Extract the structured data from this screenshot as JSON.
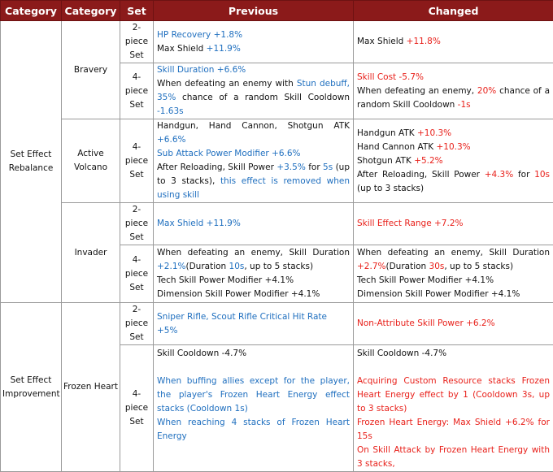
{
  "headers": [
    "Category",
    "Category",
    "Set",
    "Previous",
    "Changed"
  ],
  "groups": {
    "rebalance": "Set Effect Rebalance",
    "improvement": "Set Effect Improvement"
  },
  "sets": {
    "bravery": "Bravery",
    "active_volcano": "Active Volcano",
    "invader": "Invader",
    "frozen_heart": "Frozen Heart"
  },
  "pieces": {
    "two": "2-piece Set",
    "four": "4-piece Set"
  },
  "bravery": {
    "two_prev_1a": "HP Recovery ",
    "two_prev_1b": "+1.8%",
    "two_prev_2a": "Max Shield ",
    "two_prev_2b": "+11.9%",
    "two_new_a": "Max Shield ",
    "two_new_b": "+11.8%",
    "four_prev_1": "Skill Duration +6.6%",
    "four_prev_2a": "When defeating an enemy with ",
    "four_prev_2b": "Stun debuff, 35%",
    "four_prev_2c": " chance of a random Skill Cooldown ",
    "four_prev_2d": "-1.63s",
    "four_new_1": "Skill Cost -5.7%",
    "four_new_2a": "When defeating an enemy, ",
    "four_new_2b": "20%",
    "four_new_2c": " chance of a random Skill Cooldown ",
    "four_new_2d": "-1s"
  },
  "volcano": {
    "prev_1a": "Handgun, Hand Cannon, Shotgun ATK ",
    "prev_1b": "+6.6%",
    "prev_2": "Sub Attack Power Modifier +6.6%",
    "prev_3a": "After Reloading, Skill Power ",
    "prev_3b": "+3.5%",
    "prev_3c": " for ",
    "prev_3d": "5s",
    "prev_3e": " (up to 3 stacks), ",
    "prev_3f": "this effect is removed when using skill",
    "new_1a": "Handgun ATK ",
    "new_1b": "+10.3%",
    "new_2a": "Hand Cannon ATK ",
    "new_2b": "+10.3%",
    "new_3a": "Shotgun ATK ",
    "new_3b": "+5.2%",
    "new_4a": "After Reloading, Skill Power ",
    "new_4b": "+4.3%",
    "new_4c": "  for ",
    "new_4d": "10s",
    "new_4e": " (up to 3 stacks)"
  },
  "invader": {
    "two_prev": "Max Shield +11.9%",
    "two_new": "Skill Effect Range +7.2%",
    "four_prev_1a": "When defeating an enemy, Skill Duration ",
    "four_prev_1b": "+2.1%",
    "four_prev_1c": "(Duration ",
    "four_prev_1d": "10s",
    "four_prev_1e": ", up to 5 stacks)",
    "four_prev_2": "Tech Skill Power Modifier +4.1%",
    "four_prev_3": "Dimension Skill Power Modifier +4.1%",
    "four_new_1a": "When defeating an enemy, Skill Duration ",
    "four_new_1b": "+2.7%",
    "four_new_1c": "(Duration ",
    "four_new_1d": "30s",
    "four_new_1e": ", up to 5 stacks)",
    "four_new_2": "Tech Skill Power Modifier +4.1%",
    "four_new_3": "Dimension Skill Power Modifier +4.1%"
  },
  "frozen": {
    "two_prev": "Sniper Rifle, Scout Rifle Critical Hit Rate +5%",
    "two_new": "Non-Attribute Skill Power +6.2%",
    "four_prev_1": "Skill Cooldown -4.7%",
    "four_prev_2": "When buffing allies except for the player, the player's Frozen Heart Energy effect stacks (Cooldown 1s)",
    "four_prev_3": "When reaching 4 stacks of Frozen Heart Energy",
    "four_new_1": "Skill Cooldown -4.7%",
    "four_new_2": "Acquiring Custom Resource stacks Frozen Heart Energy effect by 1 (Cooldown 3s, up to 3 stacks)",
    "four_new_3": "Frozen Heart Energy: Max Shield +6.2% for 15s",
    "four_new_4": "On Skill Attack by Frozen Heart Energy with 3 stacks,"
  }
}
